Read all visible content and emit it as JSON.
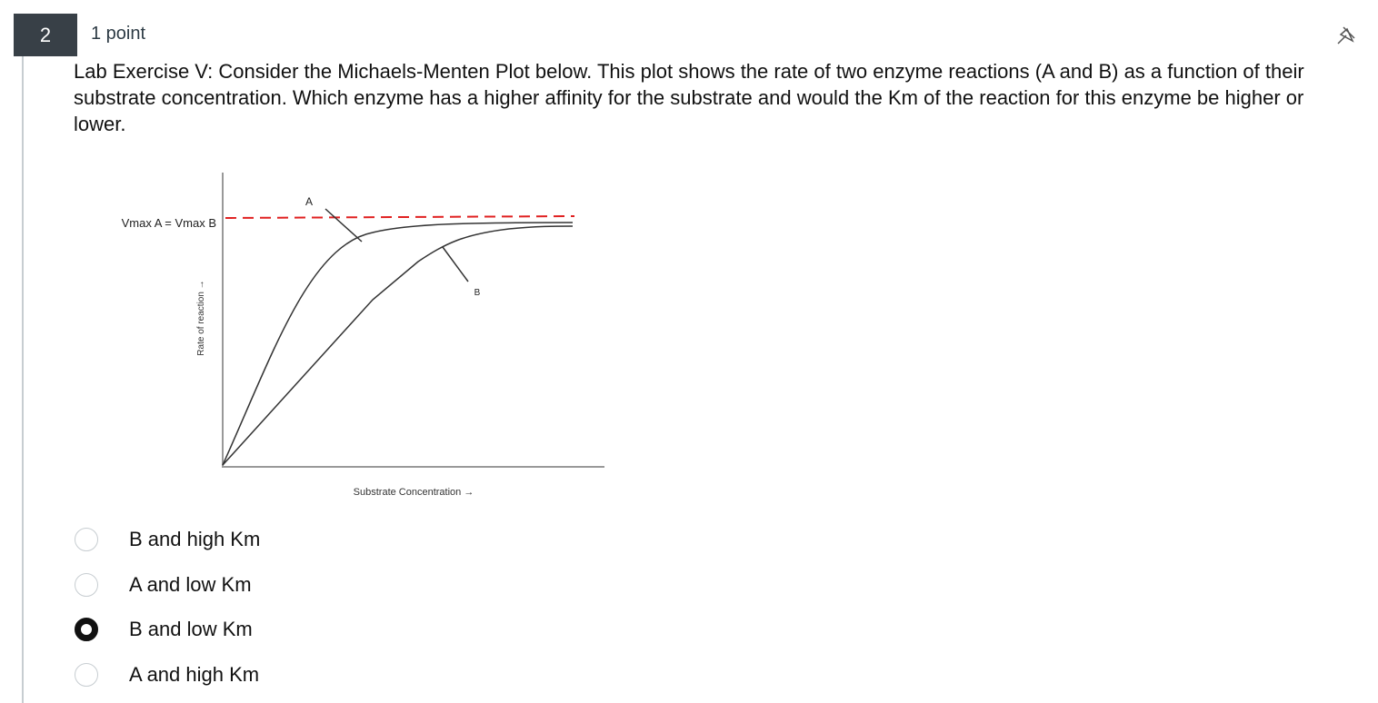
{
  "question": {
    "number": "2",
    "points": "1 point",
    "text": "Lab Exercise V: Consider the Michaels-Menten Plot below. This plot shows the rate of two enzyme reactions (A and B) as a function of their substrate concentration. Which enzyme has a higher affinity for the substrate and would the Km of the reaction for this enzyme be higher or lower."
  },
  "figure": {
    "vmax_label": "Vmax A = Vmax B",
    "y_axis_label": "Rate of reaction →",
    "x_axis_label": "Substrate Concentration →",
    "curve_a_label": "A",
    "curve_b_label": "B"
  },
  "options": [
    {
      "label": "B and high Km",
      "selected": false
    },
    {
      "label": "A and low Km",
      "selected": false
    },
    {
      "label": "B and low Km",
      "selected": true
    },
    {
      "label": "A and high Km",
      "selected": false
    }
  ]
}
